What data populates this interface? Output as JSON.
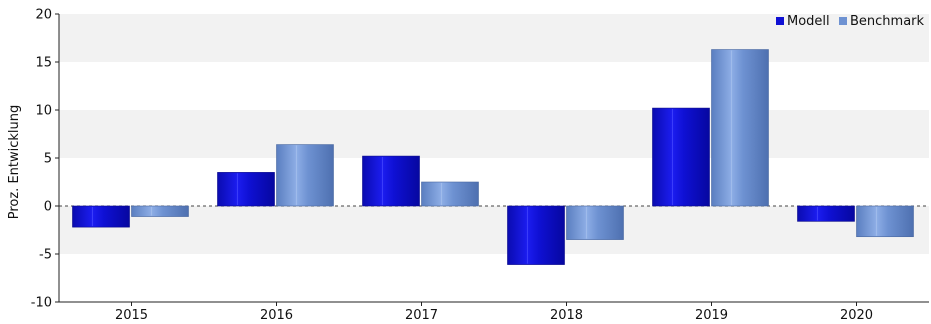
{
  "chart_data": {
    "type": "bar",
    "categories": [
      "2015",
      "2016",
      "2017",
      "2018",
      "2019",
      "2020"
    ],
    "series": [
      {
        "name": "Modell",
        "values": [
          -2.2,
          3.5,
          5.2,
          -6.1,
          10.2,
          -1.6
        ],
        "color": "#0f10d4"
      },
      {
        "name": "Benchmark",
        "values": [
          -1.1,
          6.4,
          2.5,
          -3.5,
          16.3,
          -3.2
        ],
        "color": "#6e92d2"
      }
    ],
    "ylabel": "Proz. Entwicklung",
    "xlabel": "",
    "ylim": [
      -10,
      20
    ],
    "yticks": [
      -10,
      -5,
      0,
      5,
      10,
      15,
      20
    ],
    "grid": "alternating horizontal bands",
    "legend_position": "top-right",
    "zero_line": "dashed"
  }
}
